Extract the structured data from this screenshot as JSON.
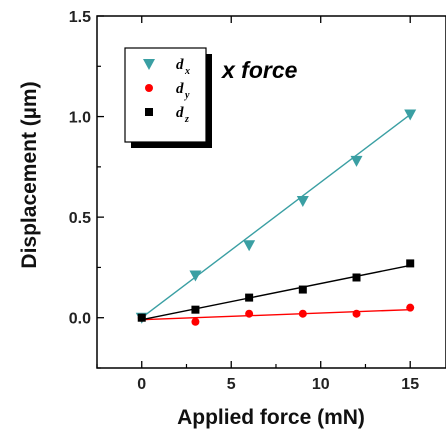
{
  "chart_data": {
    "type": "scatter",
    "title": "",
    "xlabel": "Applied force (mN)",
    "ylabel": "Displacement (µm)",
    "xlim": [
      -2.5,
      17
    ],
    "ylim": [
      -0.25,
      1.5
    ],
    "xticks": [
      "0",
      "5",
      "10",
      "15"
    ],
    "xtick_values": [
      0,
      5,
      10,
      15
    ],
    "yticks": [
      "0.0",
      "0.5",
      "1.0",
      "1.5"
    ],
    "ytick_values": [
      0.0,
      0.5,
      1.0,
      1.5
    ],
    "grid": false,
    "legend_position": "top-left",
    "annotation": "x force",
    "series": [
      {
        "name": "d",
        "subscript": "x",
        "marker": "triangle-down",
        "color": "#3a9fa3",
        "x": [
          0,
          3,
          6,
          9,
          12,
          15
        ],
        "y": [
          0.0,
          0.21,
          0.36,
          0.58,
          0.78,
          1.01
        ],
        "fit": [
          [
            0,
            0.0
          ],
          [
            15,
            1.01
          ]
        ]
      },
      {
        "name": "d",
        "subscript": "y",
        "marker": "circle",
        "color": "#ff0000",
        "x": [
          0,
          3,
          6,
          9,
          12,
          15
        ],
        "y": [
          0.0,
          -0.02,
          0.02,
          0.02,
          0.02,
          0.05
        ],
        "fit": [
          [
            0,
            -0.01
          ],
          [
            15,
            0.04
          ]
        ]
      },
      {
        "name": "d",
        "subscript": "z",
        "marker": "square",
        "color": "#000000",
        "x": [
          0,
          3,
          6,
          9,
          12,
          15
        ],
        "y": [
          0.0,
          0.04,
          0.1,
          0.14,
          0.2,
          0.27
        ],
        "fit": [
          [
            0,
            -0.01
          ],
          [
            15,
            0.26
          ]
        ]
      }
    ]
  }
}
